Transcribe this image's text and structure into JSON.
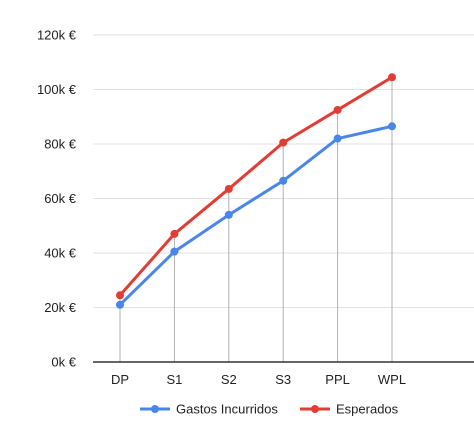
{
  "chart_data": {
    "type": "line",
    "title": "",
    "xlabel": "",
    "ylabel": "",
    "categories": [
      "DP",
      "S1",
      "S2",
      "S3",
      "PPL",
      "WPL"
    ],
    "ylim": [
      0,
      120000
    ],
    "yticks": [
      0,
      20000,
      40000,
      60000,
      80000,
      100000,
      120000
    ],
    "ytick_labels": [
      "0k €",
      "20k €",
      "40k €",
      "60k €",
      "80k €",
      "100k €",
      "120k €"
    ],
    "grid": true,
    "drop_lines": true,
    "legend_position": "bottom",
    "series": [
      {
        "name": "Gastos Incurridos",
        "color": "#4a86e8",
        "values": [
          21000,
          40500,
          54000,
          66500,
          82000,
          86500
        ]
      },
      {
        "name": "Esperados",
        "color": "#e23c35",
        "values": [
          24500,
          47000,
          63500,
          80500,
          92500,
          104500
        ]
      }
    ]
  }
}
